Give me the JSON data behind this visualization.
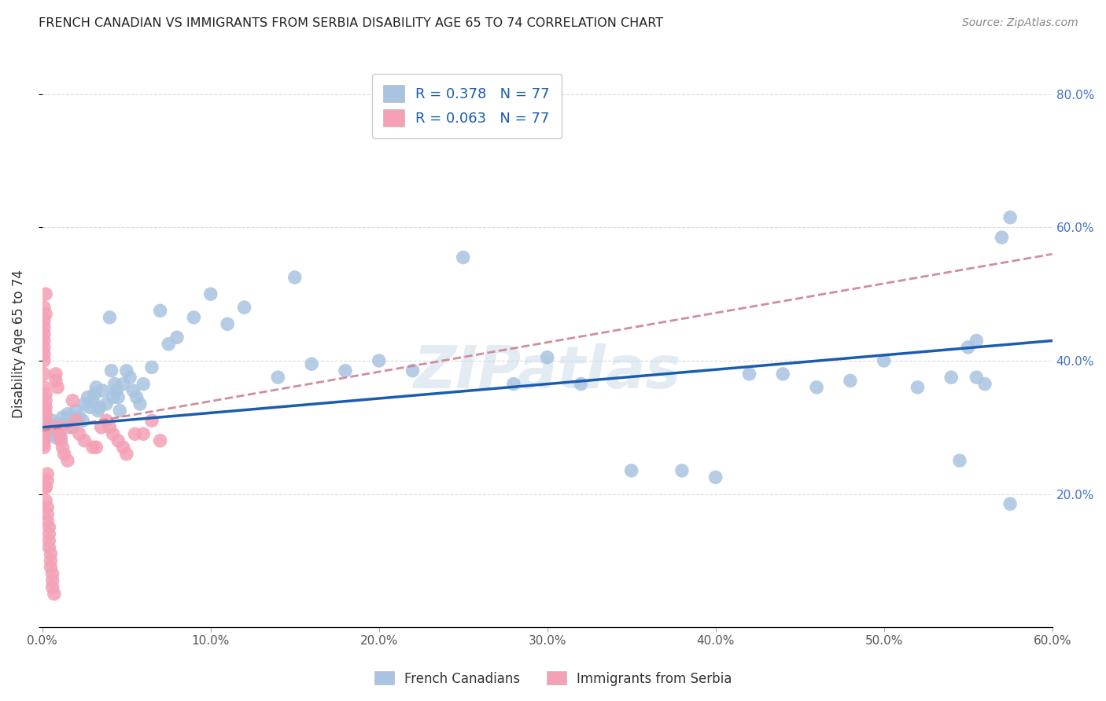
{
  "title": "FRENCH CANADIAN VS IMMIGRANTS FROM SERBIA DISABILITY AGE 65 TO 74 CORRELATION CHART",
  "source": "Source: ZipAtlas.com",
  "ylabel": "Disability Age 65 to 74",
  "xlim": [
    0.0,
    0.6
  ],
  "ylim": [
    0.0,
    0.85
  ],
  "xtick_vals": [
    0.0,
    0.1,
    0.2,
    0.3,
    0.4,
    0.5,
    0.6
  ],
  "ytick_vals": [
    0.0,
    0.2,
    0.4,
    0.6,
    0.8
  ],
  "blue_R": 0.378,
  "blue_N": 77,
  "pink_R": 0.063,
  "pink_N": 77,
  "blue_color": "#a8c4e0",
  "pink_color": "#f4a0b5",
  "blue_line_color": "#1a5cb0",
  "pink_line_color": "#d08090",
  "legend_label_blue": "French Canadians",
  "legend_label_pink": "Immigrants from Serbia",
  "watermark": "ZIPatlas",
  "blue_line_start": 0.3,
  "blue_line_end": 0.43,
  "pink_line_start": 0.295,
  "pink_line_end": 0.56,
  "blue_x": [
    0.003,
    0.005,
    0.006,
    0.007,
    0.008,
    0.009,
    0.01,
    0.011,
    0.012,
    0.013,
    0.015,
    0.016,
    0.017,
    0.018,
    0.02,
    0.022,
    0.024,
    0.025,
    0.027,
    0.028,
    0.03,
    0.031,
    0.032,
    0.033,
    0.034,
    0.036,
    0.038,
    0.04,
    0.041,
    0.042,
    0.043,
    0.044,
    0.045,
    0.046,
    0.048,
    0.05,
    0.052,
    0.054,
    0.056,
    0.058,
    0.06,
    0.065,
    0.07,
    0.075,
    0.08,
    0.09,
    0.1,
    0.11,
    0.12,
    0.14,
    0.15,
    0.16,
    0.18,
    0.2,
    0.22,
    0.25,
    0.28,
    0.3,
    0.32,
    0.35,
    0.38,
    0.4,
    0.42,
    0.44,
    0.46,
    0.48,
    0.5,
    0.52,
    0.54,
    0.555,
    0.56,
    0.57,
    0.575,
    0.555,
    0.55,
    0.545,
    0.575
  ],
  "blue_y": [
    0.3,
    0.29,
    0.31,
    0.295,
    0.285,
    0.305,
    0.295,
    0.285,
    0.315,
    0.305,
    0.32,
    0.315,
    0.31,
    0.3,
    0.325,
    0.315,
    0.31,
    0.335,
    0.345,
    0.33,
    0.34,
    0.35,
    0.36,
    0.325,
    0.33,
    0.355,
    0.335,
    0.465,
    0.385,
    0.345,
    0.365,
    0.355,
    0.345,
    0.325,
    0.365,
    0.385,
    0.375,
    0.355,
    0.345,
    0.335,
    0.365,
    0.39,
    0.475,
    0.425,
    0.435,
    0.465,
    0.5,
    0.455,
    0.48,
    0.375,
    0.525,
    0.395,
    0.385,
    0.4,
    0.385,
    0.555,
    0.365,
    0.405,
    0.365,
    0.235,
    0.235,
    0.225,
    0.38,
    0.38,
    0.36,
    0.37,
    0.4,
    0.36,
    0.375,
    0.375,
    0.365,
    0.585,
    0.615,
    0.43,
    0.42,
    0.25,
    0.185
  ],
  "pink_x": [
    0.001,
    0.001,
    0.001,
    0.001,
    0.001,
    0.001,
    0.001,
    0.001,
    0.001,
    0.001,
    0.001,
    0.001,
    0.001,
    0.001,
    0.001,
    0.001,
    0.001,
    0.001,
    0.001,
    0.001,
    0.001,
    0.001,
    0.001,
    0.002,
    0.002,
    0.002,
    0.002,
    0.002,
    0.002,
    0.002,
    0.002,
    0.002,
    0.002,
    0.003,
    0.003,
    0.003,
    0.003,
    0.003,
    0.004,
    0.004,
    0.004,
    0.004,
    0.005,
    0.005,
    0.005,
    0.006,
    0.006,
    0.006,
    0.007,
    0.007,
    0.008,
    0.008,
    0.009,
    0.01,
    0.01,
    0.011,
    0.012,
    0.013,
    0.015,
    0.016,
    0.018,
    0.02,
    0.022,
    0.025,
    0.03,
    0.032,
    0.035,
    0.038,
    0.04,
    0.042,
    0.045,
    0.048,
    0.05,
    0.055,
    0.06,
    0.065,
    0.07
  ],
  "pink_y": [
    0.3,
    0.295,
    0.305,
    0.29,
    0.31,
    0.285,
    0.315,
    0.28,
    0.32,
    0.275,
    0.325,
    0.27,
    0.33,
    0.4,
    0.42,
    0.44,
    0.46,
    0.43,
    0.45,
    0.41,
    0.38,
    0.36,
    0.48,
    0.5,
    0.47,
    0.35,
    0.33,
    0.32,
    0.34,
    0.31,
    0.21,
    0.19,
    0.21,
    0.18,
    0.22,
    0.17,
    0.23,
    0.16,
    0.15,
    0.14,
    0.13,
    0.12,
    0.11,
    0.1,
    0.09,
    0.08,
    0.07,
    0.06,
    0.05,
    0.3,
    0.38,
    0.37,
    0.36,
    0.3,
    0.29,
    0.28,
    0.27,
    0.26,
    0.25,
    0.3,
    0.34,
    0.31,
    0.29,
    0.28,
    0.27,
    0.27,
    0.3,
    0.31,
    0.3,
    0.29,
    0.28,
    0.27,
    0.26,
    0.29,
    0.29,
    0.31,
    0.28
  ]
}
